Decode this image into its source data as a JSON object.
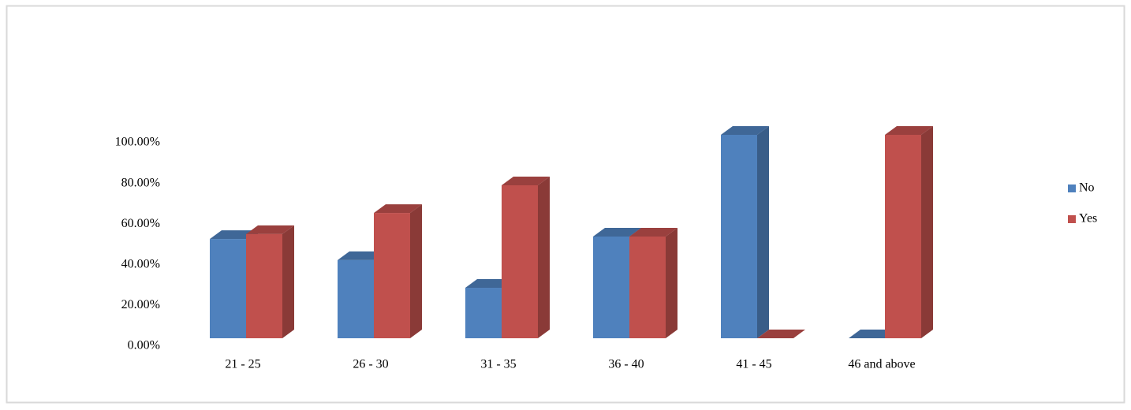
{
  "chart_data": {
    "type": "bar3d",
    "categories": [
      "21 - 25",
      "26 - 30",
      "31 - 35",
      "36 - 40",
      "41 - 45",
      "46 and above"
    ],
    "series": [
      {
        "name": "No",
        "color": "#4f81bd",
        "values": [
          48.8,
          38.4,
          24.8,
          50,
          100,
          0
        ]
      },
      {
        "name": "Yes",
        "color": "#c0504d",
        "values": [
          51.2,
          61.6,
          75.2,
          50,
          0,
          100
        ]
      }
    ],
    "ylim": [
      0,
      100
    ],
    "yticks": [
      {
        "value": 0,
        "label": "0.00%"
      },
      {
        "value": 20,
        "label": "20.00%"
      },
      {
        "value": 40,
        "label": "40.00%"
      },
      {
        "value": 60,
        "label": "60.00%"
      },
      {
        "value": 80,
        "label": "80.00%"
      },
      {
        "value": 100,
        "label": "100.00%"
      }
    ],
    "legend": "right"
  }
}
